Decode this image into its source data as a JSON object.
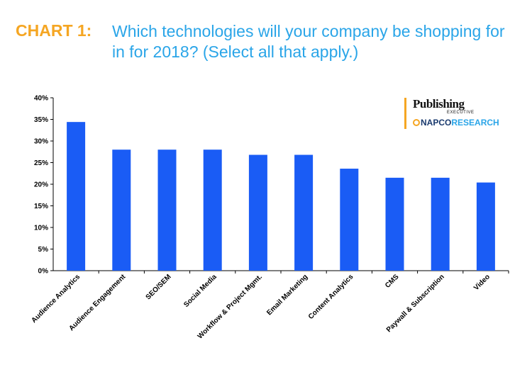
{
  "header": {
    "label": "CHART 1:",
    "title": "Which technologies will your company be shopping for in for 2018? (Select all that apply.)"
  },
  "logo": {
    "line1": "Publishing",
    "line2": "EXECUTIVE",
    "line3a": "NAPCO",
    "line3b": "RESEARCH"
  },
  "colors": {
    "bar": "#1a5cf5",
    "label": "#f5a623",
    "title": "#2aa5e8"
  },
  "chart_data": {
    "type": "bar",
    "title": "",
    "xlabel": "",
    "ylabel": "",
    "ylim": [
      0,
      0.4
    ],
    "yticks": [
      "0%",
      "5%",
      "10%",
      "15%",
      "20%",
      "25%",
      "30%",
      "35%",
      "40%"
    ],
    "categories": [
      "Audience Analytics",
      "Audience Engagement",
      "SEO/SEM",
      "Social Media",
      "Workflow & Project Mgmt.",
      "Email Marketing",
      "Content Analytics",
      "CMS",
      "Paywall & Subscription",
      "Video"
    ],
    "values": [
      0.344,
      0.28,
      0.28,
      0.28,
      0.268,
      0.268,
      0.236,
      0.215,
      0.215,
      0.204
    ],
    "grid": false,
    "legend": "none"
  }
}
